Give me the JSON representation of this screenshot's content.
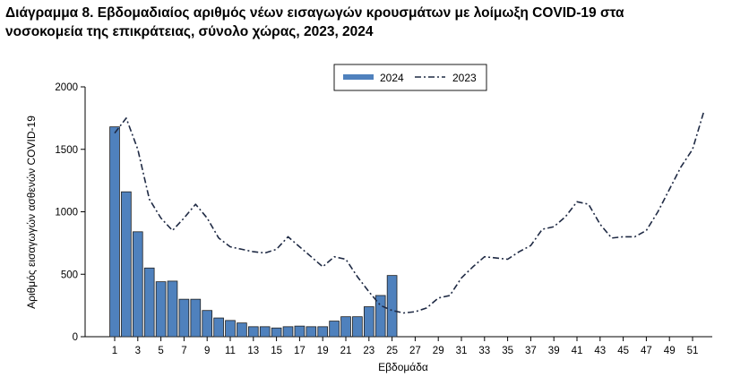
{
  "page": {
    "title_line1": "Διάγραμμα 8. Εβδομαδιαίος αριθμός νέων εισαγωγών κρουσμάτων με λοίμωξη COVID-19 στα",
    "title_line2": "νοσοκομεία της επικράτειας, σύνολο χώρας, 2023, 2024"
  },
  "colors": {
    "bar_fill": "#4F81BD",
    "bar_stroke": "#1F1F1F",
    "line_2023": "#1F2A44",
    "axis": "#000000"
  },
  "chart_data": {
    "type": "bar",
    "xlabel": "Εβδομάδα",
    "ylabel": "Αριθμός εισαγωγών ασθενών COVID-19",
    "ylim": [
      0,
      2000
    ],
    "yticks": [
      "0",
      "500",
      "1000",
      "1500",
      "2000"
    ],
    "xlim": [
      1,
      52
    ],
    "xticks": [
      "1",
      "3",
      "5",
      "7",
      "9",
      "11",
      "13",
      "15",
      "17",
      "19",
      "21",
      "23",
      "25",
      "27",
      "29",
      "31",
      "33",
      "35",
      "37",
      "39",
      "41",
      "43",
      "45",
      "47",
      "49",
      "51"
    ],
    "grid": false,
    "legend_position": "top-center",
    "series": [
      {
        "name": "2024",
        "kind": "bar",
        "x": [
          1,
          2,
          3,
          4,
          5,
          6,
          7,
          8,
          9,
          10,
          11,
          12,
          13,
          14,
          15,
          16,
          17,
          18,
          19,
          20,
          21,
          22,
          23,
          24,
          25
        ],
        "values": [
          1680,
          1160,
          840,
          550,
          440,
          445,
          300,
          300,
          210,
          150,
          130,
          110,
          80,
          80,
          70,
          80,
          85,
          80,
          80,
          125,
          160,
          160,
          240,
          330,
          490
        ]
      },
      {
        "name": "2023",
        "kind": "line",
        "style": "dash-dot",
        "x": [
          1,
          2,
          3,
          4,
          5,
          6,
          7,
          8,
          9,
          10,
          11,
          12,
          13,
          14,
          15,
          16,
          17,
          18,
          19,
          20,
          21,
          22,
          23,
          24,
          25,
          26,
          27,
          28,
          29,
          30,
          31,
          32,
          33,
          34,
          35,
          36,
          37,
          38,
          39,
          40,
          41,
          42,
          43,
          44,
          45,
          46,
          47,
          48,
          49,
          50,
          51,
          52
        ],
        "values": [
          1630,
          1750,
          1500,
          1100,
          950,
          850,
          950,
          1060,
          950,
          790,
          720,
          700,
          680,
          670,
          700,
          800,
          720,
          640,
          560,
          640,
          620,
          480,
          360,
          250,
          210,
          190,
          200,
          230,
          310,
          330,
          470,
          560,
          640,
          630,
          620,
          680,
          730,
          860,
          880,
          960,
          1080,
          1060,
          900,
          790,
          800,
          800,
          850,
          1000,
          1180,
          1360,
          1500,
          1810
        ]
      }
    ]
  }
}
